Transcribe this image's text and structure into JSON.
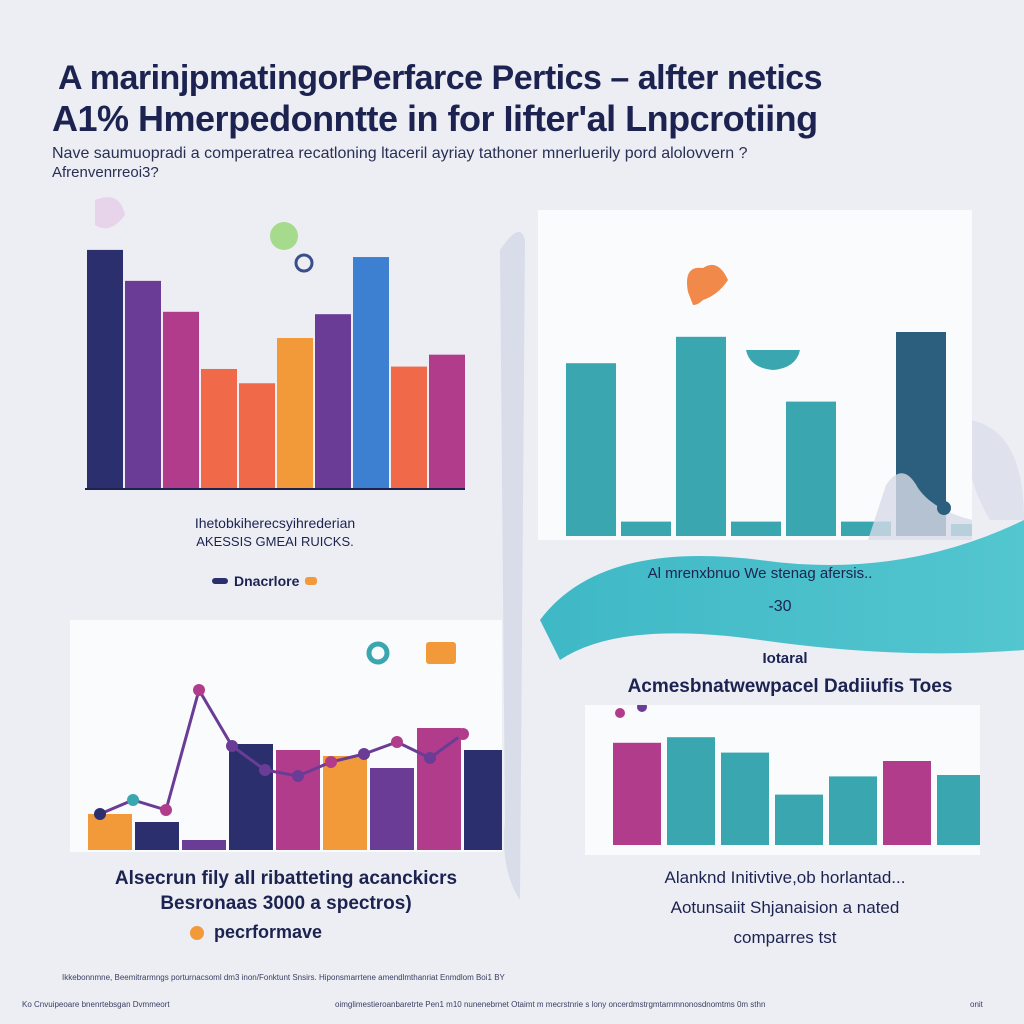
{
  "header": {
    "title_line1": "A marinjpmatingorPerfarce Pertics  –  alfter netics",
    "title_line2": "A1% Hmerpedonntte in for Iifter'al Lnpcrotiing",
    "subtitle_line1": "Nave saumuopradi a comperatrea recatloning ltaceril ayriay tathoner mnerluerily pord alolovvern ?",
    "subtitle_line2": "Afrenvenrreoi3?"
  },
  "panel_top_left": {
    "caption_line1": "Ihetobkiherecsyihrederian",
    "caption_line2": "AKESSIS GMEAI RUICKS.",
    "legend_label": "Dnacrlore"
  },
  "panel_top_right": {
    "banner_text": "Al mrenxbnuo We stenag afersis..",
    "banner_value": "-30"
  },
  "panel_bottom_left": {
    "caption_line1": "Alsecrun fily all ribatteting acanckicrs",
    "caption_line2": "Besronaas 3000 a spectros)",
    "caption_line3": "pecrformave"
  },
  "panel_bottom_right": {
    "label_small": "Iotaral",
    "label_title": "Acmesbnatwewpacel Dadiiufis Toes",
    "caption_line1": "Alanknd Initivtive,ob horlantad...",
    "caption_line2": "Aotunsaiit Shjanaision a nated",
    "caption_line3": "comparres tst"
  },
  "footer": {
    "line1": "Ikkebonnmne, Beemitrarmngs  porturnacsoml dm3 inon/Fonktunt Snsirs. Hiponsmarrtene amendlmthanriat Enmdlom Boi1 BY",
    "line2_left": "Ko  Cnvuipeoare bnenrtebsgan Dvmmeort",
    "line2_mid": "oimglimestieroanbaretrte Pen1 m10 nunenebrnet Otaimt  m  mecrstnrie s lony oncerdmstrgmtarnmnonosdnomtms 0m sthn",
    "line2_right": "onit"
  },
  "colors": {
    "navy": "#2b2f6e",
    "purple": "#6a3c96",
    "magenta": "#b23c8c",
    "orange": "#f29a3a",
    "coral": "#f06a4a",
    "blue": "#3d7fd0",
    "teal": "#3aa6b0",
    "dark_teal": "#2c5f7e",
    "banner": "#2e4f70"
  },
  "chart_data": [
    {
      "type": "bar",
      "panel": "top-left",
      "categories": [
        "",
        "",
        "",
        "",
        "",
        "",
        "",
        "",
        "",
        ""
      ],
      "values": [
        100,
        87,
        74,
        50,
        44,
        63,
        73,
        97,
        51,
        56
      ],
      "ylim": [
        0,
        105
      ]
    },
    {
      "type": "bar",
      "panel": "top-right",
      "categories": [
        "",
        "",
        "",
        "",
        "",
        "",
        "",
        ""
      ],
      "values": [
        72,
        6,
        83,
        6,
        56,
        6,
        85,
        5
      ],
      "ylim": [
        0,
        100
      ]
    },
    {
      "type": "bar",
      "panel": "bottom-left",
      "categories": [
        "",
        "",
        "",
        "",
        "",
        "",
        "",
        "",
        ""
      ],
      "values": [
        18,
        14,
        5,
        53,
        50,
        47,
        41,
        61,
        50
      ],
      "ylim": [
        0,
        100
      ],
      "series_line": [
        18,
        25,
        20,
        80,
        52,
        40,
        37,
        44,
        48,
        54,
        46,
        58
      ]
    },
    {
      "type": "bar",
      "panel": "bottom-right",
      "categories": [
        "",
        "",
        "",
        "",
        "",
        "",
        ""
      ],
      "values": [
        73,
        77,
        66,
        36,
        49,
        60,
        50
      ],
      "ylim": [
        0,
        100
      ]
    }
  ]
}
